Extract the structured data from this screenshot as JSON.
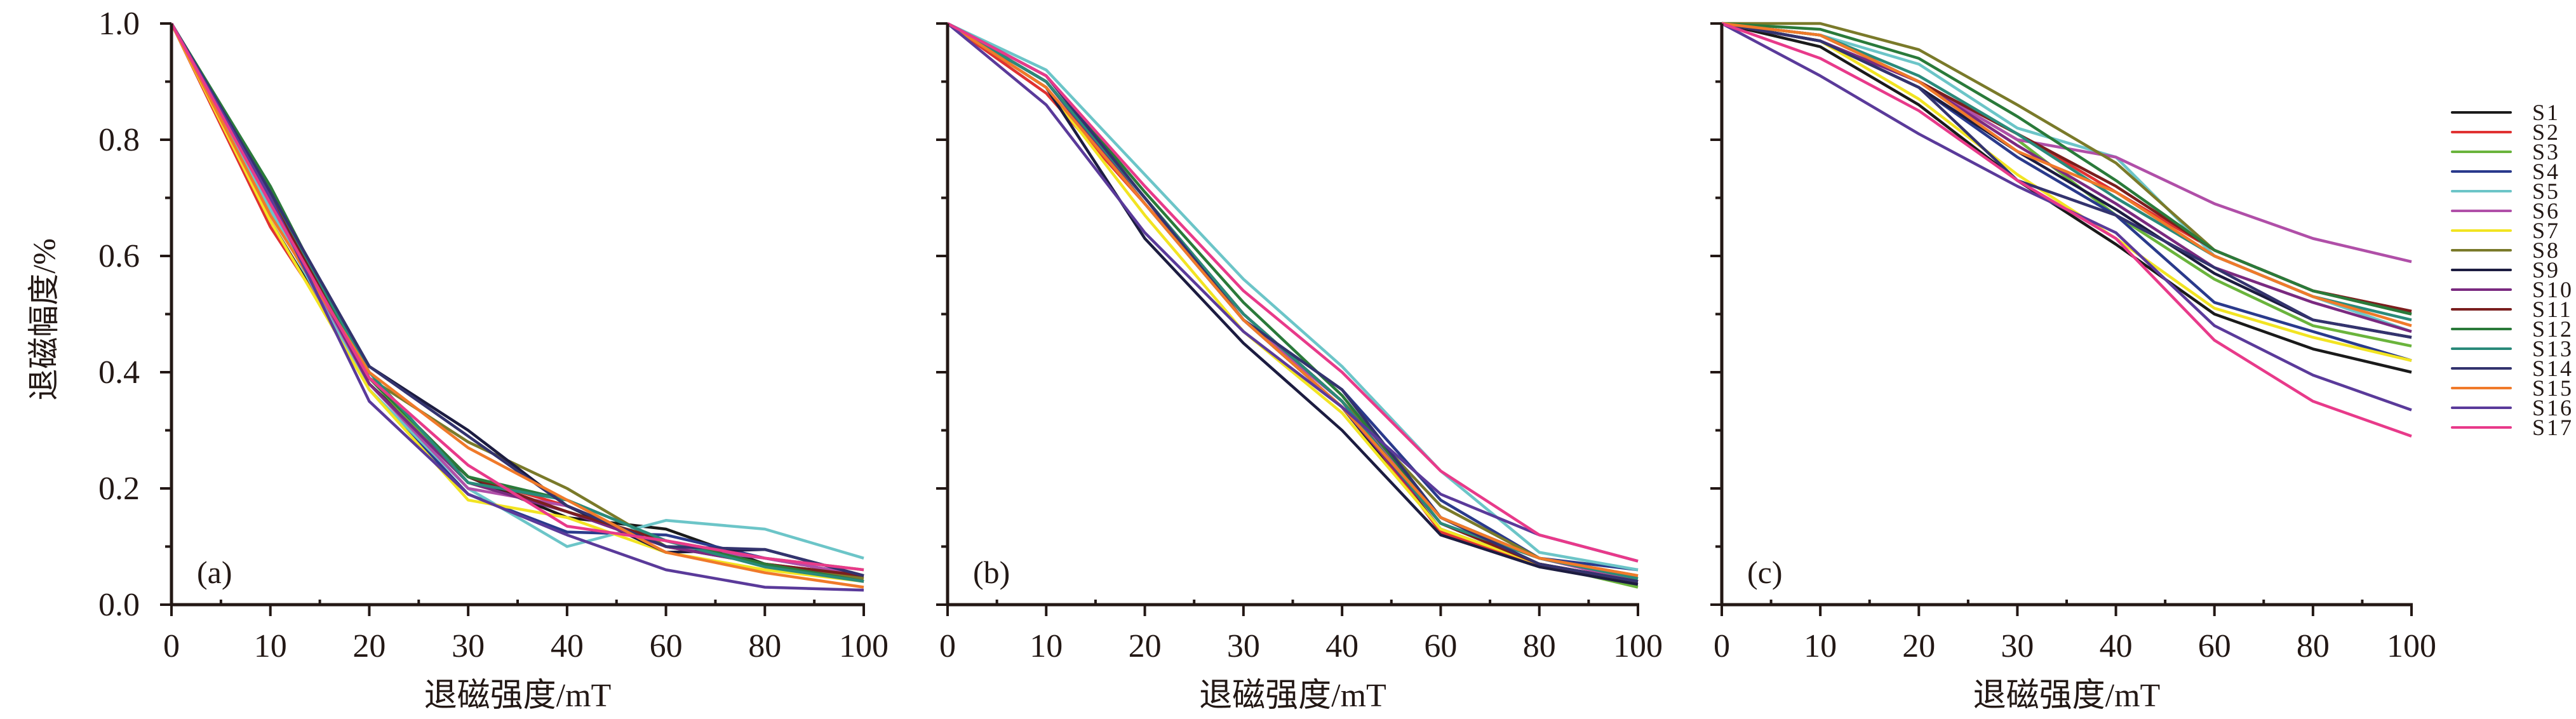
{
  "chart_data": [
    {
      "type": "line",
      "panel_label": "(a)",
      "xlabel": "退磁强度/mT",
      "ylabel": "退磁幅度/%",
      "x": [
        0,
        10,
        20,
        30,
        40,
        60,
        80,
        100
      ],
      "x_tick_labels": [
        "0",
        "10",
        "20",
        "30",
        "40",
        "60",
        "80",
        "100"
      ],
      "y_tick_labels": [
        "0.0",
        "0.2",
        "0.4",
        "0.6",
        "0.8",
        "1.0"
      ],
      "ylim": [
        0,
        1.0
      ],
      "grid": false,
      "series": [
        {
          "name": "S1",
          "values": [
            1,
            0.66,
            0.38,
            0.22,
            0.15,
            0.13,
            0.07,
            0.04
          ]
        },
        {
          "name": "S2",
          "values": [
            1,
            0.65,
            0.39,
            0.22,
            0.17,
            0.1,
            0.07,
            0.05
          ]
        },
        {
          "name": "S3",
          "values": [
            1,
            0.71,
            0.39,
            0.21,
            0.16,
            0.11,
            0.08,
            0.06
          ]
        },
        {
          "name": "S4",
          "values": [
            1,
            0.7,
            0.37,
            0.19,
            0.125,
            0.12,
            0.08,
            0.05
          ]
        },
        {
          "name": "S5",
          "values": [
            1,
            0.68,
            0.37,
            0.2,
            0.1,
            0.145,
            0.13,
            0.08
          ]
        },
        {
          "name": "S6",
          "values": [
            1,
            0.69,
            0.38,
            0.2,
            0.17,
            0.1,
            0.08,
            0.05
          ]
        },
        {
          "name": "S7",
          "values": [
            1,
            0.66,
            0.37,
            0.18,
            0.15,
            0.09,
            0.06,
            0.04
          ]
        },
        {
          "name": "S8",
          "values": [
            1,
            0.7,
            0.39,
            0.28,
            0.2,
            0.1,
            0.07,
            0.045
          ]
        },
        {
          "name": "S9",
          "values": [
            1,
            0.71,
            0.41,
            0.3,
            0.17,
            0.09,
            0.095,
            0.05
          ]
        },
        {
          "name": "S10",
          "values": [
            1,
            0.7,
            0.38,
            0.21,
            0.16,
            0.1,
            0.07,
            0.04
          ]
        },
        {
          "name": "S11",
          "values": [
            1,
            0.7,
            0.39,
            0.22,
            0.16,
            0.11,
            0.07,
            0.05
          ]
        },
        {
          "name": "S12",
          "values": [
            1,
            0.72,
            0.39,
            0.22,
            0.18,
            0.11,
            0.07,
            0.04
          ]
        },
        {
          "name": "S13",
          "values": [
            1,
            0.71,
            0.4,
            0.21,
            0.18,
            0.11,
            0.065,
            0.04
          ]
        },
        {
          "name": "S14",
          "values": [
            1,
            0.71,
            0.41,
            0.29,
            0.17,
            0.1,
            0.095,
            0.05
          ]
        },
        {
          "name": "S15",
          "values": [
            1,
            0.67,
            0.4,
            0.27,
            0.18,
            0.09,
            0.055,
            0.03
          ]
        },
        {
          "name": "S16",
          "values": [
            1,
            0.7,
            0.35,
            0.19,
            0.12,
            0.06,
            0.03,
            0.025
          ]
        },
        {
          "name": "S17",
          "values": [
            1,
            0.69,
            0.39,
            0.24,
            0.135,
            0.11,
            0.08,
            0.06
          ]
        }
      ]
    },
    {
      "type": "line",
      "panel_label": "(b)",
      "xlabel": "退磁强度/mT",
      "x": [
        0,
        10,
        20,
        30,
        40,
        60,
        80,
        100
      ],
      "x_tick_labels": [
        "0",
        "10",
        "20",
        "30",
        "40",
        "60",
        "80",
        "100"
      ],
      "ylim": [
        0,
        1.0
      ],
      "grid": false,
      "series": [
        {
          "name": "S1",
          "values": [
            1,
            0.9,
            0.69,
            0.49,
            0.34,
            0.13,
            0.07,
            0.04
          ]
        },
        {
          "name": "S2",
          "values": [
            1,
            0.88,
            0.69,
            0.5,
            0.35,
            0.125,
            0.07,
            0.04
          ]
        },
        {
          "name": "S3",
          "values": [
            1,
            0.9,
            0.7,
            0.5,
            0.35,
            0.14,
            0.07,
            0.03
          ]
        },
        {
          "name": "S4",
          "values": [
            1,
            0.9,
            0.7,
            0.49,
            0.37,
            0.18,
            0.08,
            0.06
          ]
        },
        {
          "name": "S5",
          "values": [
            1,
            0.92,
            0.74,
            0.56,
            0.41,
            0.23,
            0.09,
            0.06
          ]
        },
        {
          "name": "S6",
          "values": [
            1,
            0.9,
            0.7,
            0.49,
            0.35,
            0.15,
            0.08,
            0.04
          ]
        },
        {
          "name": "S7",
          "values": [
            1,
            0.89,
            0.67,
            0.47,
            0.33,
            0.13,
            0.07,
            0.04
          ]
        },
        {
          "name": "S8",
          "values": [
            1,
            0.9,
            0.7,
            0.5,
            0.35,
            0.17,
            0.08,
            0.05
          ]
        },
        {
          "name": "S9",
          "values": [
            1,
            0.89,
            0.63,
            0.45,
            0.3,
            0.12,
            0.065,
            0.035
          ]
        },
        {
          "name": "S10",
          "values": [
            1,
            0.9,
            0.69,
            0.49,
            0.34,
            0.14,
            0.07,
            0.04
          ]
        },
        {
          "name": "S11",
          "values": [
            1,
            0.9,
            0.7,
            0.5,
            0.35,
            0.14,
            0.07,
            0.04
          ]
        },
        {
          "name": "S12",
          "values": [
            1,
            0.91,
            0.71,
            0.52,
            0.36,
            0.15,
            0.08,
            0.045
          ]
        },
        {
          "name": "S13",
          "values": [
            1,
            0.9,
            0.7,
            0.5,
            0.35,
            0.14,
            0.08,
            0.045
          ]
        },
        {
          "name": "S14",
          "values": [
            1,
            0.91,
            0.7,
            0.49,
            0.37,
            0.15,
            0.07,
            0.04
          ]
        },
        {
          "name": "S15",
          "values": [
            1,
            0.89,
            0.69,
            0.49,
            0.34,
            0.15,
            0.08,
            0.05
          ]
        },
        {
          "name": "S16",
          "values": [
            1,
            0.86,
            0.64,
            0.47,
            0.34,
            0.19,
            0.12,
            0.075
          ]
        },
        {
          "name": "S17",
          "values": [
            1,
            0.91,
            0.72,
            0.54,
            0.4,
            0.23,
            0.12,
            0.075
          ]
        }
      ]
    },
    {
      "type": "line",
      "panel_label": "(c)",
      "xlabel": "退磁强度/mT",
      "x": [
        0,
        10,
        20,
        30,
        40,
        60,
        80,
        100
      ],
      "x_tick_labels": [
        "0",
        "10",
        "20",
        "30",
        "40",
        "60",
        "80",
        "100"
      ],
      "ylim": [
        0,
        1.0
      ],
      "grid": false,
      "series": [
        {
          "name": "S1",
          "values": [
            1,
            0.96,
            0.86,
            0.73,
            0.62,
            0.5,
            0.44,
            0.4
          ]
        },
        {
          "name": "S2",
          "values": [
            1,
            0.98,
            0.9,
            0.81,
            0.71,
            0.61,
            0.54,
            0.505
          ]
        },
        {
          "name": "S3",
          "values": [
            1,
            0.98,
            0.9,
            0.8,
            0.67,
            0.56,
            0.48,
            0.445
          ]
        },
        {
          "name": "S4",
          "values": [
            1,
            0.97,
            0.89,
            0.77,
            0.67,
            0.52,
            0.47,
            0.42
          ]
        },
        {
          "name": "S5",
          "values": [
            1,
            0.98,
            0.93,
            0.82,
            0.77,
            0.6,
            0.53,
            0.47
          ]
        },
        {
          "name": "S6",
          "values": [
            1,
            0.97,
            0.9,
            0.8,
            0.77,
            0.69,
            0.63,
            0.59
          ]
        },
        {
          "name": "S7",
          "values": [
            1,
            0.97,
            0.87,
            0.74,
            0.63,
            0.51,
            0.46,
            0.42
          ]
        },
        {
          "name": "S8",
          "values": [
            1,
            1.0,
            0.955,
            0.86,
            0.76,
            0.61,
            0.54,
            0.5
          ]
        },
        {
          "name": "S9",
          "values": [
            1,
            0.97,
            0.89,
            0.78,
            0.68,
            0.57,
            0.49,
            0.46
          ]
        },
        {
          "name": "S10",
          "values": [
            1,
            0.97,
            0.9,
            0.79,
            0.69,
            0.58,
            0.52,
            0.47
          ]
        },
        {
          "name": "S11",
          "values": [
            1,
            0.98,
            0.9,
            0.81,
            0.72,
            0.61,
            0.54,
            0.505
          ]
        },
        {
          "name": "S12",
          "values": [
            1,
            0.99,
            0.94,
            0.84,
            0.73,
            0.61,
            0.54,
            0.5
          ]
        },
        {
          "name": "S13",
          "values": [
            1,
            0.98,
            0.91,
            0.81,
            0.7,
            0.6,
            0.53,
            0.49
          ]
        },
        {
          "name": "S14",
          "values": [
            1,
            0.97,
            0.89,
            0.73,
            0.67,
            0.58,
            0.49,
            0.46
          ]
        },
        {
          "name": "S15",
          "values": [
            1,
            0.98,
            0.9,
            0.78,
            0.71,
            0.6,
            0.53,
            0.48
          ]
        },
        {
          "name": "S16",
          "values": [
            1,
            0.91,
            0.81,
            0.72,
            0.64,
            0.48,
            0.395,
            0.335
          ]
        },
        {
          "name": "S17",
          "values": [
            1,
            0.94,
            0.85,
            0.73,
            0.63,
            0.455,
            0.35,
            0.29
          ]
        }
      ]
    }
  ],
  "legend": {
    "placement": "right",
    "entries": [
      "S1",
      "S2",
      "S3",
      "S4",
      "S5",
      "S6",
      "S7",
      "S8",
      "S9",
      "S10",
      "S11",
      "S12",
      "S13",
      "S14",
      "S15",
      "S16",
      "S17"
    ]
  },
  "colors": {
    "S1": "#1a1a1a",
    "S2": "#e03232",
    "S3": "#6ab43c",
    "S4": "#2a3a8c",
    "S5": "#6cc5c8",
    "S6": "#b04fa8",
    "S7": "#f2e422",
    "S8": "#7a7a2a",
    "S9": "#1c1c40",
    "S10": "#7a2a80",
    "S11": "#7a1e1e",
    "S12": "#2a7a3a",
    "S13": "#2a8a7a",
    "S14": "#33336e",
    "S15": "#f07a2a",
    "S16": "#5a3a9a",
    "S17": "#e83a8a",
    "axis": "#231815"
  }
}
